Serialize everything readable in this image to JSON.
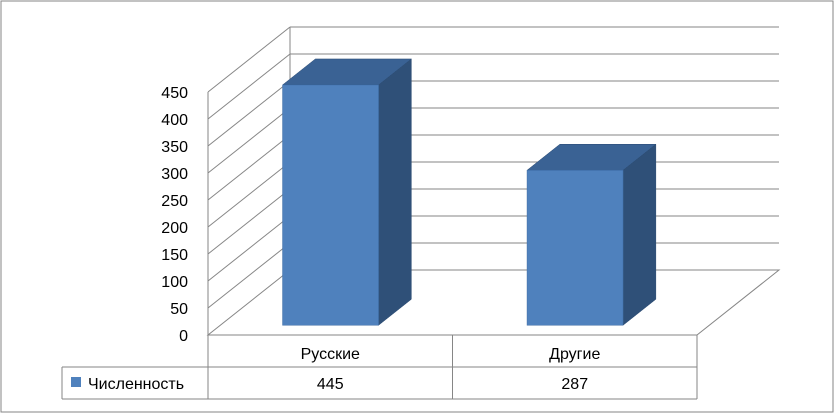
{
  "chart_data": {
    "type": "bar",
    "title": "",
    "xlabel": "",
    "ylabel": "",
    "categories": [
      "Русские",
      "Другие"
    ],
    "series": [
      {
        "name": "Численность",
        "values": [
          445,
          287
        ],
        "color": "#4f81bd"
      }
    ],
    "ylim": [
      0,
      450
    ],
    "yticks": [
      0,
      50,
      100,
      150,
      200,
      250,
      300,
      350,
      400,
      450
    ],
    "grid": true,
    "legend": "data-table-left",
    "data_table": true,
    "three_d": true,
    "colors": {
      "bar_front": "#4f81bd",
      "bar_side": "#2f5078",
      "bar_top": "#3a6294",
      "grid": "#868686",
      "border": "#868686"
    }
  }
}
